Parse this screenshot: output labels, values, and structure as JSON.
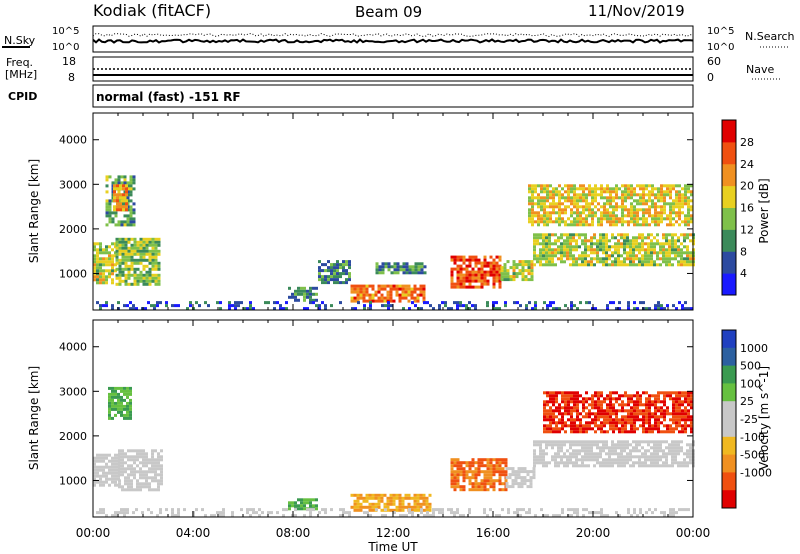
{
  "header": {
    "station": "Kodiak (fitACF)",
    "beam": "Beam 09",
    "date": "11/Nov/2019"
  },
  "noise_panel": {
    "left_label": "N.Sky",
    "right_label": "N.Search",
    "ytick_top": "10^5",
    "ytick_bottom": "10^0"
  },
  "freq_panel": {
    "left_label_1": "Freq.",
    "left_label_2": "[MHz]",
    "right_label": "Nave",
    "left_ticks": [
      "18",
      "8"
    ],
    "right_ticks": [
      "60",
      "0"
    ]
  },
  "cpid_panel": {
    "label": "CPID",
    "mode": "normal (fast) -151 RF"
  },
  "colors": {
    "power": [
      "#1a1aff",
      "#2c4aa0",
      "#3b8a5a",
      "#7fc04a",
      "#e8d020",
      "#f09020",
      "#f05010",
      "#e00000"
    ],
    "velocity": [
      "#e00000",
      "#f05010",
      "#f09020",
      "#f0b820",
      "#c8c8c8",
      "#c8c8c8",
      "#66c040",
      "#3a9a50",
      "#2c60a0",
      "#2040c0"
    ]
  },
  "chart_data": [
    {
      "type": "heatmap",
      "name": "power",
      "ylabel": "Slant Range [km]",
      "ylim": [
        180,
        4600
      ],
      "yticks": [
        1000,
        2000,
        3000,
        4000
      ],
      "xlim": [
        0,
        24
      ],
      "colorbar_label": "Power [dB]",
      "colorbar_ticks": [
        "4",
        "8",
        "12",
        "16",
        "20",
        "24",
        "28"
      ],
      "colorbar_range": [
        0,
        32
      ],
      "blobs": [
        {
          "t0": 0.0,
          "t1": 0.9,
          "r0": 800,
          "r1": 1700,
          "v": 16
        },
        {
          "t0": 0.9,
          "t1": 2.7,
          "r0": 750,
          "r1": 1800,
          "v": 14
        },
        {
          "t0": 0.5,
          "t1": 1.6,
          "r0": 2100,
          "r1": 3200,
          "v": 12
        },
        {
          "t0": 0.8,
          "t1": 1.4,
          "r0": 2400,
          "r1": 3000,
          "v": 22
        },
        {
          "t0": 7.8,
          "t1": 9.0,
          "r0": 400,
          "r1": 700,
          "v": 10
        },
        {
          "t0": 9.0,
          "t1": 10.3,
          "r0": 800,
          "r1": 1300,
          "v": 9
        },
        {
          "t0": 10.3,
          "t1": 13.2,
          "r0": 350,
          "r1": 750,
          "v": 24
        },
        {
          "t0": 11.3,
          "t1": 13.3,
          "r0": 1000,
          "r1": 1250,
          "v": 10
        },
        {
          "t0": 14.3,
          "t1": 16.3,
          "r0": 700,
          "r1": 1400,
          "v": 26
        },
        {
          "t0": 16.3,
          "t1": 17.6,
          "r0": 850,
          "r1": 1300,
          "v": 16
        },
        {
          "t0": 17.4,
          "t1": 24.0,
          "r0": 2100,
          "r1": 3000,
          "v": 18
        },
        {
          "t0": 17.6,
          "t1": 24.0,
          "r0": 1200,
          "r1": 1900,
          "v": 16
        },
        {
          "t0": 0.0,
          "t1": 24.0,
          "r0": 180,
          "r1": 380,
          "v": 6
        }
      ]
    },
    {
      "type": "heatmap",
      "name": "velocity",
      "ylabel": "Slant Range [km]",
      "xlabel": "Time UT",
      "ylim": [
        180,
        4600
      ],
      "yticks": [
        1000,
        2000,
        3000,
        4000
      ],
      "xlim": [
        0,
        24
      ],
      "xticks": [
        "00:00",
        "04:00",
        "08:00",
        "12:00",
        "16:00",
        "20:00",
        "00:00"
      ],
      "colorbar_label": "Velocity [m s^-1]",
      "colorbar_ticks": [
        "1000",
        "500",
        "100",
        "25",
        "-25",
        "-100",
        "-500",
        "-1000"
      ],
      "blobs": [
        {
          "t0": 0.0,
          "t1": 1.0,
          "r0": 900,
          "r1": 1600,
          "v": "ground"
        },
        {
          "t0": 1.0,
          "t1": 2.7,
          "r0": 800,
          "r1": 1700,
          "v": "ground"
        },
        {
          "t0": 0.6,
          "t1": 1.5,
          "r0": 2400,
          "r1": 3100,
          "v": "green"
        },
        {
          "t0": 7.8,
          "t1": 9.0,
          "r0": 350,
          "r1": 600,
          "v": "green"
        },
        {
          "t0": 10.3,
          "t1": 13.5,
          "r0": 350,
          "r1": 700,
          "v": "yellow"
        },
        {
          "t0": 14.3,
          "t1": 16.5,
          "r0": 800,
          "r1": 1500,
          "v": "orange"
        },
        {
          "t0": 16.5,
          "t1": 17.7,
          "r0": 850,
          "r1": 1300,
          "v": "ground"
        },
        {
          "t0": 18.0,
          "t1": 24.0,
          "r0": 2100,
          "r1": 3000,
          "v": "red"
        },
        {
          "t0": 17.6,
          "t1": 24.0,
          "r0": 1300,
          "r1": 1900,
          "v": "ground"
        },
        {
          "t0": 0.0,
          "t1": 24.0,
          "r0": 180,
          "r1": 380,
          "v": "ground"
        }
      ]
    }
  ]
}
